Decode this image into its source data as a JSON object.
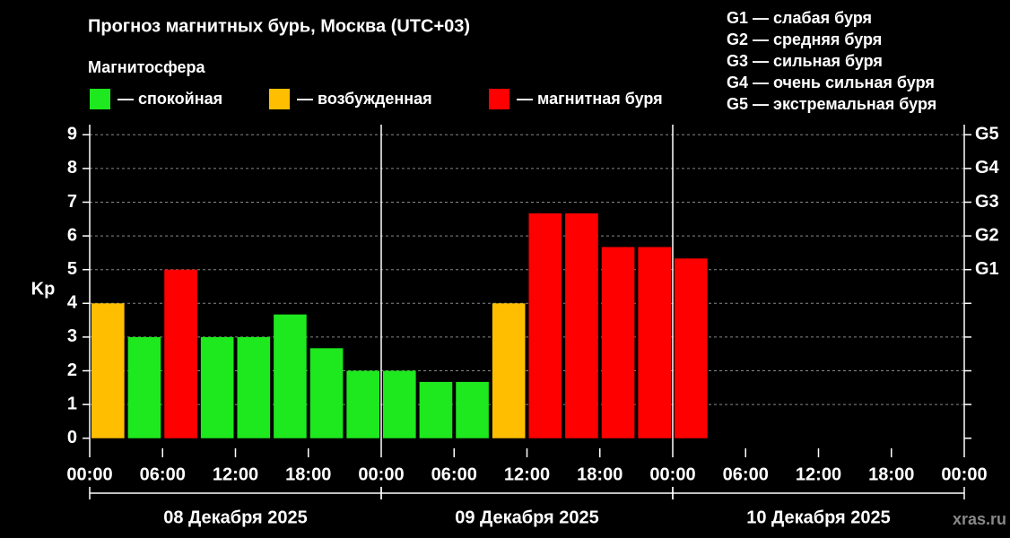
{
  "chart_data": {
    "type": "bar",
    "title": "Прогноз магнитных бурь, Москва (UTC+03)",
    "legend_title": "Магнитосфера",
    "y_label": "Kp",
    "watermark": "xras.ru",
    "g_scale": [
      "G1 — слабая буря",
      "G2 — средняя буря",
      "G3 — сильная буря",
      "G4 — очень сильная буря",
      "G5 — экстремальная буря"
    ],
    "x": [
      0,
      3,
      6,
      9,
      12,
      15,
      18,
      21,
      24,
      27,
      30,
      33,
      36,
      39,
      42,
      45,
      48
    ],
    "bar_width": 3,
    "series": [
      {
        "name": "— спокойная",
        "color": "#1ee81e",
        "values": [
          null,
          3,
          null,
          3,
          3,
          3.67,
          2.67,
          2,
          2,
          1.67,
          1.67,
          null,
          null,
          null,
          null,
          null,
          null
        ]
      },
      {
        "name": "— возбужденная",
        "color": "#ffbf00",
        "values": [
          4,
          null,
          null,
          null,
          null,
          null,
          null,
          null,
          null,
          null,
          null,
          4,
          null,
          null,
          null,
          null,
          null
        ]
      },
      {
        "name": "— магнитная буря",
        "color": "#ff0000",
        "values": [
          null,
          null,
          5,
          null,
          null,
          null,
          null,
          null,
          null,
          null,
          null,
          null,
          6.67,
          6.67,
          5.67,
          5.67,
          5.33
        ]
      }
    ],
    "xlim": [
      0,
      72
    ],
    "xticks": [
      {
        "value": 0,
        "label": "00:00"
      },
      {
        "value": 6,
        "label": "06:00"
      },
      {
        "value": 12,
        "label": "12:00"
      },
      {
        "value": 18,
        "label": "18:00"
      },
      {
        "value": 24,
        "label": "00:00"
      },
      {
        "value": 30,
        "label": "06:00"
      },
      {
        "value": 36,
        "label": "12:00"
      },
      {
        "value": 42,
        "label": "18:00"
      },
      {
        "value": 48,
        "label": "00:00"
      },
      {
        "value": 54,
        "label": "06:00"
      },
      {
        "value": 60,
        "label": "12:00"
      },
      {
        "value": 66,
        "label": "18:00"
      },
      {
        "value": 72,
        "label": "00:00"
      }
    ],
    "days": [
      {
        "label": "08 Декабря 2025",
        "start": 0,
        "end": 24
      },
      {
        "label": "09 Декабря 2025",
        "start": 24,
        "end": 48
      },
      {
        "label": "10 Декабря 2025",
        "start": 48,
        "end": 72
      }
    ],
    "ylim": [
      -0.3,
      9.3
    ],
    "yticks": [
      0,
      1,
      2,
      3,
      4,
      5,
      6,
      7,
      8,
      9
    ],
    "y2lim": [
      -0.3,
      9.3
    ],
    "y2ticks": [
      {
        "value": 5,
        "label": "G1"
      },
      {
        "value": 6,
        "label": "G2"
      },
      {
        "value": 7,
        "label": "G3"
      },
      {
        "value": 8,
        "label": "G4"
      },
      {
        "value": 9,
        "label": "G5"
      }
    ],
    "grid": true
  }
}
